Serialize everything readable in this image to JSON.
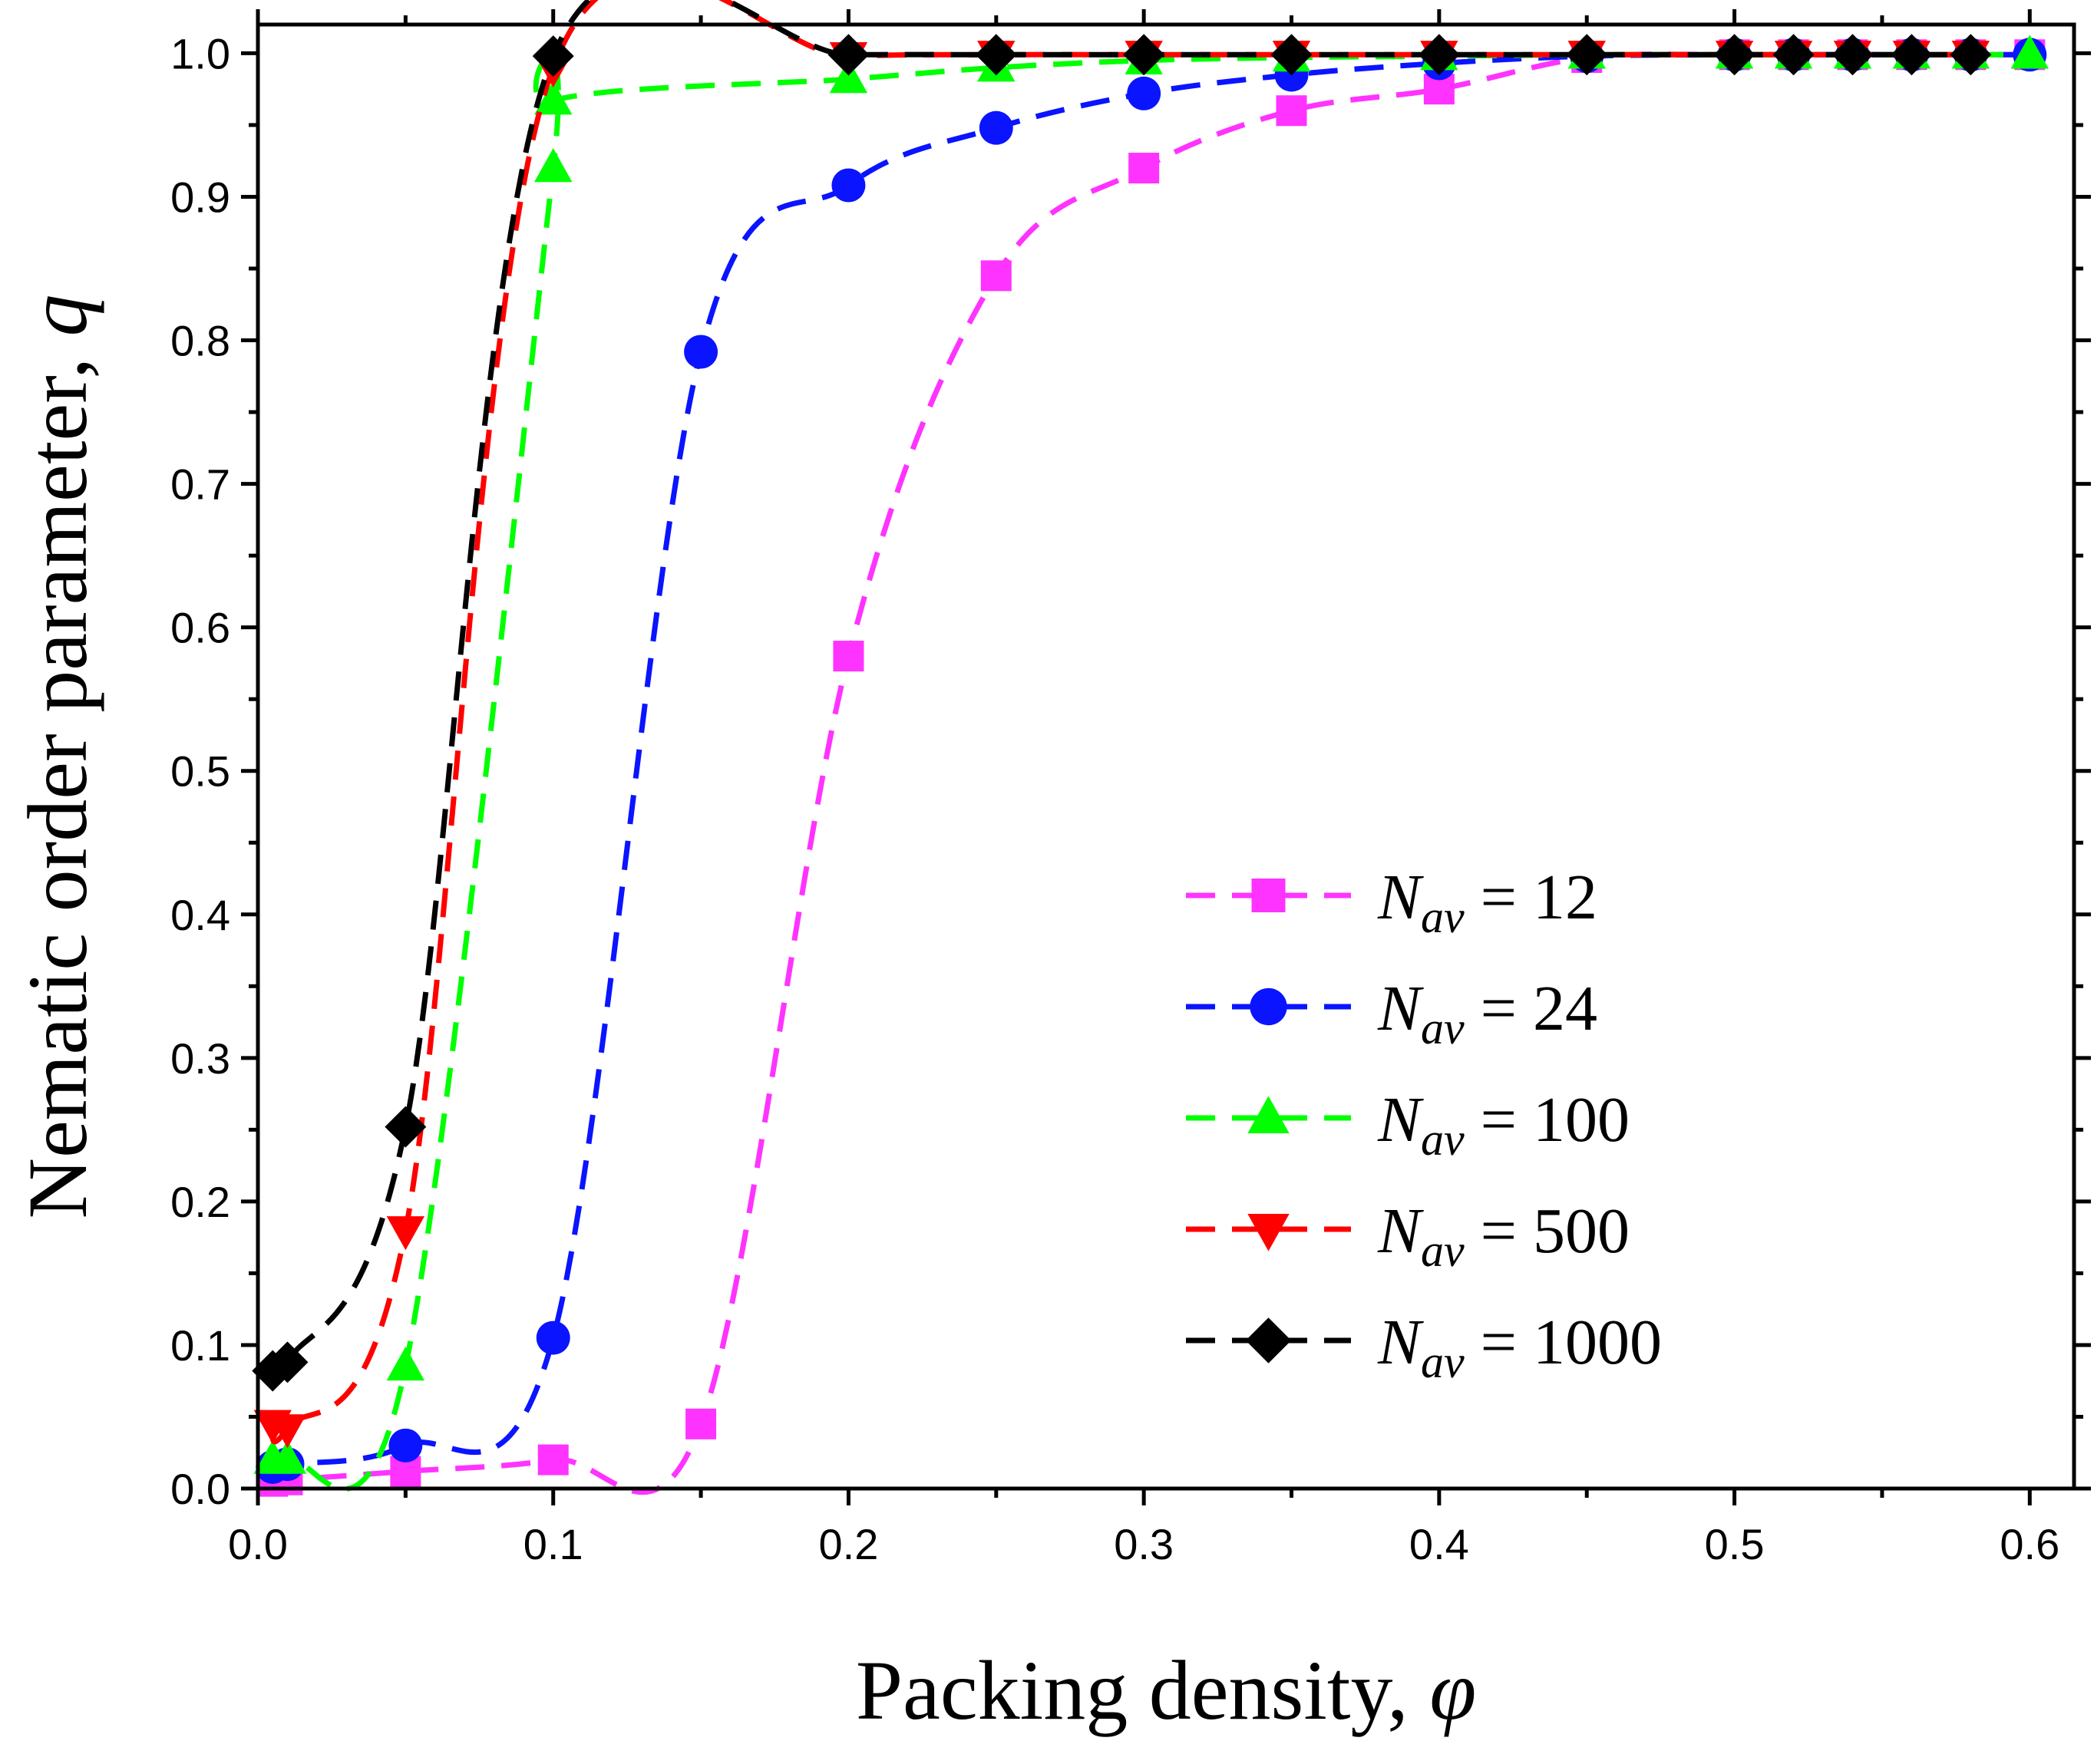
{
  "chart_data": {
    "type": "line",
    "xlabel": "Packing density, ",
    "xlabel_symbol": "φ",
    "ylabel": "Nematic order parameter, ",
    "ylabel_symbol": "q",
    "xlim": [
      0.0,
      0.615
    ],
    "ylim": [
      0.0,
      1.02
    ],
    "xticks": [
      0.0,
      0.1,
      0.2,
      0.3,
      0.4,
      0.5,
      0.6
    ],
    "xtick_labels": [
      "0.0",
      "0.1",
      "0.2",
      "0.3",
      "0.4",
      "0.5",
      "0.6"
    ],
    "yticks": [
      0.0,
      0.1,
      0.2,
      0.3,
      0.4,
      0.5,
      0.6,
      0.7,
      0.8,
      0.9,
      1.0
    ],
    "ytick_labels": [
      "0.0",
      "0.1",
      "0.2",
      "0.3",
      "0.4",
      "0.5",
      "0.6",
      "0.7",
      "0.8",
      "0.9",
      "1.0"
    ],
    "grid": false,
    "legend_position": "bottom-right",
    "series": [
      {
        "name_symbol": "N",
        "name_sub": "av",
        "name_rest": " = 12",
        "color": "#ff33ff",
        "marker": "square",
        "x": [
          0.005,
          0.01,
          0.05,
          0.1,
          0.15,
          0.2,
          0.25,
          0.3,
          0.35,
          0.4,
          0.45,
          0.5,
          0.52,
          0.54,
          0.56,
          0.58,
          0.6
        ],
        "y": [
          0.005,
          0.006,
          0.012,
          0.02,
          0.045,
          0.58,
          0.845,
          0.92,
          0.96,
          0.975,
          0.997,
          0.999,
          0.999,
          0.999,
          0.999,
          0.999,
          0.999
        ]
      },
      {
        "name_symbol": "N",
        "name_sub": "av",
        "name_rest": " = 24",
        "color": "#0a14ff",
        "marker": "circle",
        "x": [
          0.005,
          0.01,
          0.05,
          0.1,
          0.15,
          0.2,
          0.25,
          0.3,
          0.35,
          0.4,
          0.45,
          0.5,
          0.52,
          0.54,
          0.56,
          0.58,
          0.6
        ],
        "y": [
          0.015,
          0.017,
          0.03,
          0.105,
          0.792,
          0.908,
          0.948,
          0.972,
          0.985,
          0.993,
          0.998,
          0.999,
          0.999,
          0.999,
          0.999,
          0.999,
          0.999
        ]
      },
      {
        "name_symbol": "N",
        "name_sub": "av",
        "name_rest": " = 100",
        "color": "#00ff00",
        "marker": "triangle-up",
        "x": [
          0.005,
          0.01,
          0.05,
          0.1,
          0.1,
          0.2,
          0.25,
          0.3,
          0.35,
          0.4,
          0.45,
          0.5,
          0.52,
          0.54,
          0.56,
          0.58,
          0.6
        ],
        "y": [
          0.02,
          0.02,
          0.085,
          0.92,
          0.967,
          0.982,
          0.99,
          0.995,
          0.997,
          0.998,
          0.999,
          0.999,
          0.999,
          0.999,
          0.999,
          0.999,
          0.999
        ]
      },
      {
        "name_symbol": "N",
        "name_sub": "av",
        "name_rest": " = 500",
        "color": "#ff0000",
        "marker": "triangle-down",
        "x": [
          0.005,
          0.01,
          0.05,
          0.1,
          0.2,
          0.25,
          0.3,
          0.35,
          0.4,
          0.45,
          0.5,
          0.52,
          0.54,
          0.56,
          0.58
        ],
        "y": [
          0.045,
          0.042,
          0.18,
          0.99,
          0.998,
          0.999,
          0.999,
          0.999,
          0.999,
          0.999,
          0.999,
          0.999,
          0.999,
          0.999,
          0.999
        ]
      },
      {
        "name_symbol": "N",
        "name_sub": "av",
        "name_rest": " = 1000",
        "color": "#000000",
        "marker": "diamond",
        "x": [
          0.005,
          0.01,
          0.05,
          0.1,
          0.2,
          0.25,
          0.3,
          0.35,
          0.4,
          0.45,
          0.5,
          0.52,
          0.54,
          0.56,
          0.58
        ],
        "y": [
          0.082,
          0.088,
          0.252,
          0.998,
          0.999,
          0.999,
          0.999,
          0.999,
          0.999,
          0.999,
          0.999,
          0.999,
          0.999,
          0.999,
          0.999
        ]
      }
    ]
  }
}
